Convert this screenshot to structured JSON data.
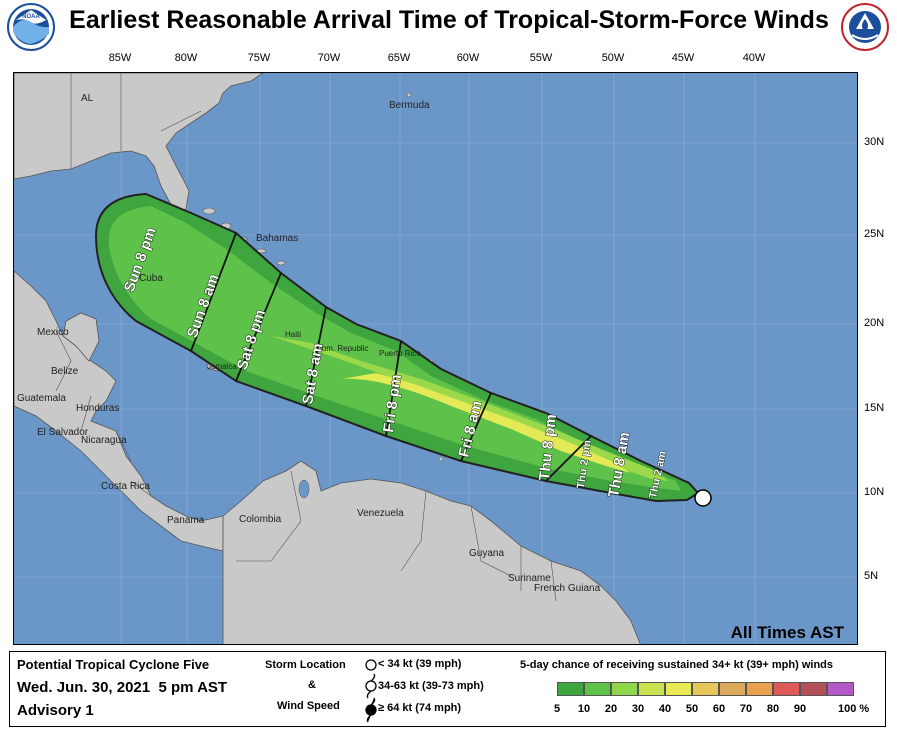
{
  "header": {
    "title": "Earliest Reasonable Arrival Time of Tropical-Storm-Force Winds",
    "noaa_logo_text": "NOAA",
    "nws_logo_text": "NATIONAL WEATHER SERVICE"
  },
  "axes": {
    "longitude_labels": [
      "85W",
      "80W",
      "75W",
      "70W",
      "65W",
      "60W",
      "55W",
      "50W",
      "45W",
      "40W"
    ],
    "latitude_labels": [
      "30N",
      "25N",
      "20N",
      "15N",
      "10N",
      "5N"
    ]
  },
  "map": {
    "place_labels": [
      "AL",
      "Bermuda",
      "Bahamas",
      "Cuba",
      "Mexico",
      "Belize",
      "Guatemala",
      "Honduras",
      "El Salvador",
      "Nicaragua",
      "Costa Rica",
      "Panama",
      "Colombia",
      "Venezuela",
      "Guyana",
      "Suriname",
      "French Guiana",
      "Jamaica",
      "Haiti",
      "Dom. Republic",
      "Puerto Rico"
    ],
    "arrival_times": [
      "Sun 8 pm",
      "Sun 8 am",
      "Sat 8 pm",
      "Sat 8 am",
      "Fri 8 pm",
      "Fri 8 am",
      "Thu 8 pm",
      "Thu 2 pm",
      "Thu 8 am",
      "Thu 2 am"
    ],
    "times_note": "All Times AST",
    "colors": {
      "ocean": "#6b97c8",
      "land": "#c9c9c9",
      "zone_outer": "#3fa63f",
      "zone_mid": "#5ec14a",
      "zone_inner": "#9ad94a",
      "zone_core": "#e3ea55"
    }
  },
  "legend": {
    "storm_name": "Potential Tropical Cyclone Five",
    "issued": "Wed. Jun. 30, 2021  5 pm AST",
    "advisory": "Advisory 1",
    "storm_location_label": "Storm Location",
    "ampersand": "&",
    "wind_speed_label": "Wind Speed",
    "wind_classes": [
      "< 34 kt (39 mph)",
      "34-63 kt (39-73 mph)",
      "≥ 64 kt (74 mph)"
    ],
    "probability_title": "5-day chance of receiving sustained 34+ kt (39+ mph) winds",
    "probability_ticks": [
      "5",
      "10",
      "20",
      "30",
      "40",
      "50",
      "60",
      "70",
      "80",
      "90",
      "100 %"
    ],
    "probability_colors": [
      "#3fa63f",
      "#5ec14a",
      "#8fd64a",
      "#c8e24f",
      "#eaea55",
      "#e8c55a",
      "#d9a85a",
      "#eaa04f",
      "#dd5a5a",
      "#b2505a",
      "#b45ac8"
    ]
  }
}
